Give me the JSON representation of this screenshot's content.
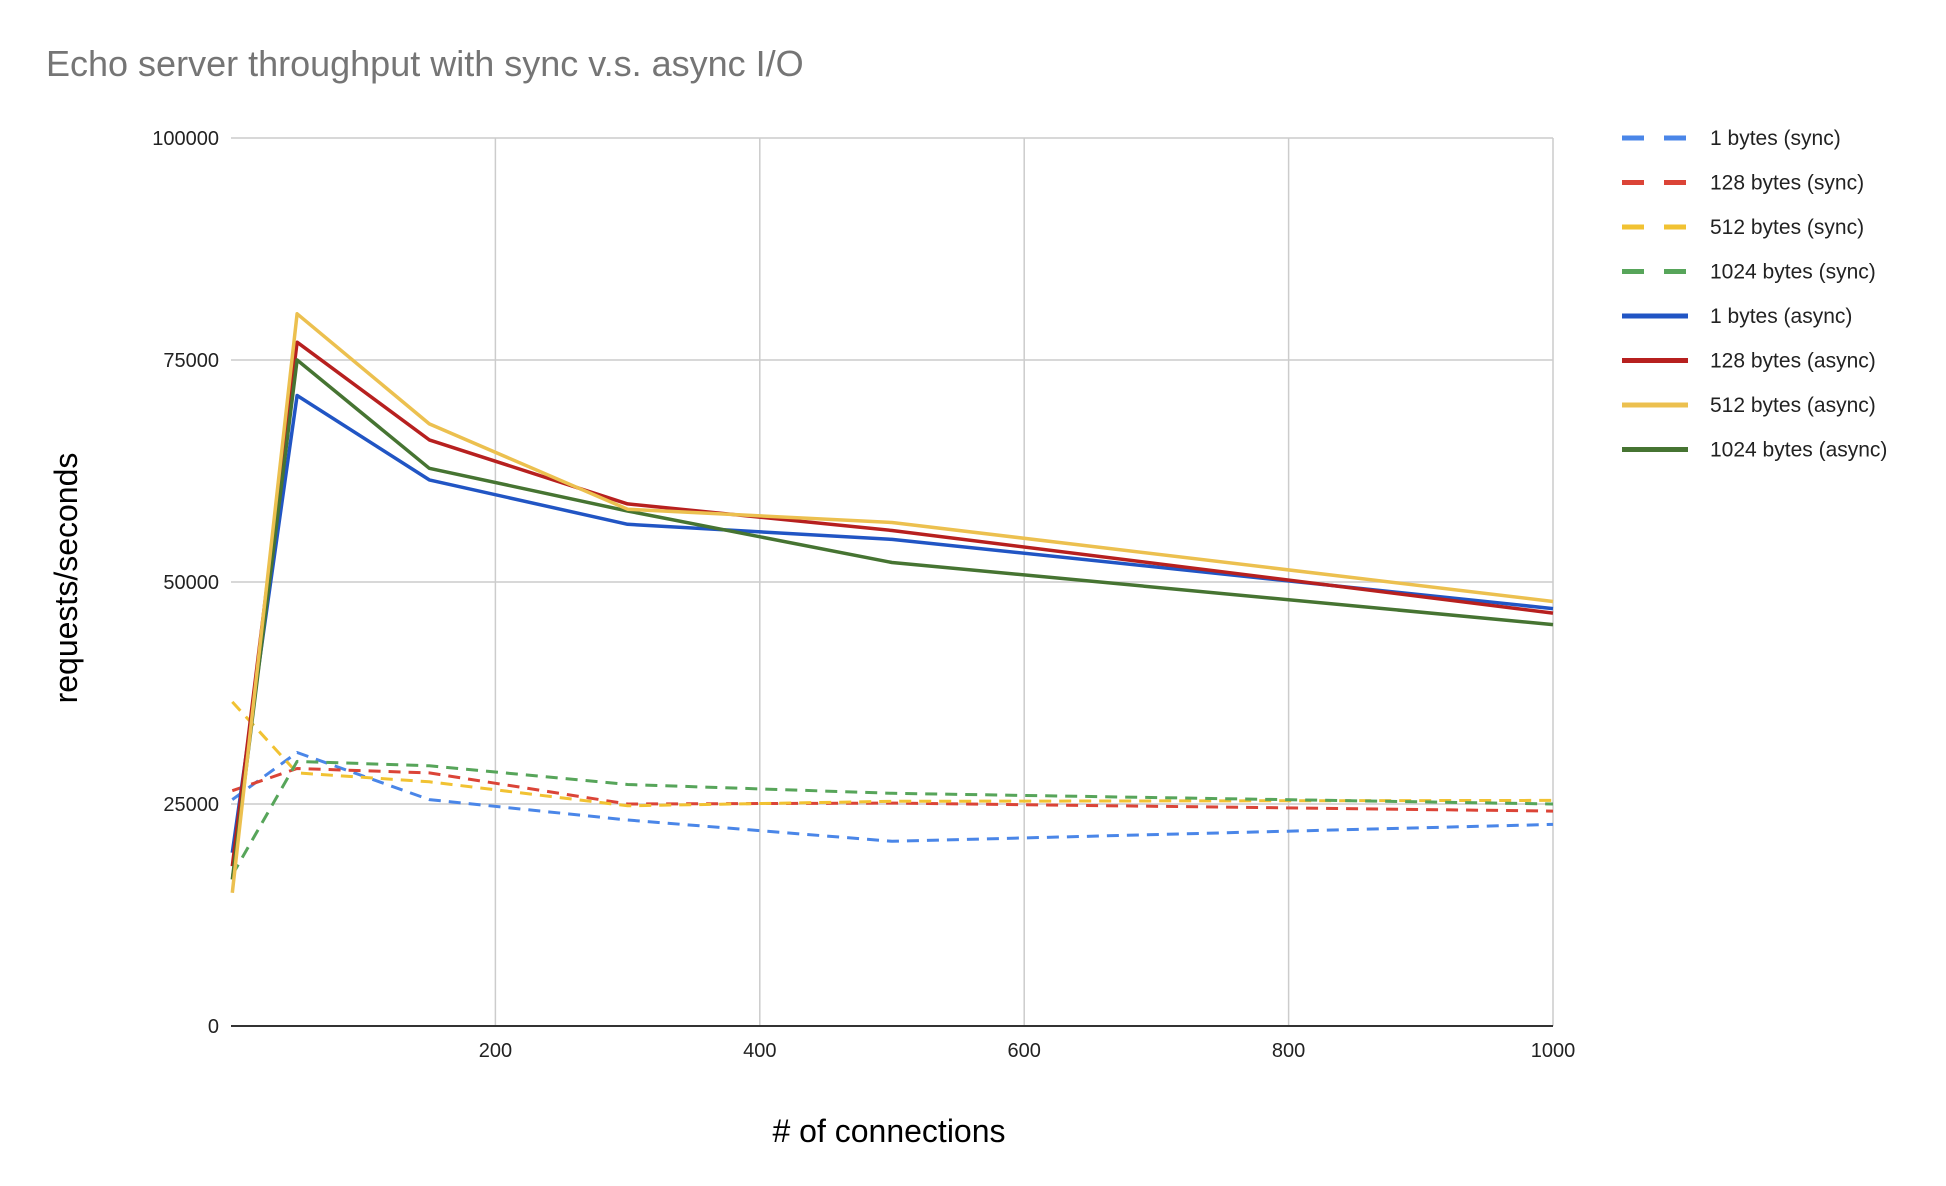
{
  "chart_data": {
    "type": "line",
    "title": "Echo server throughput with sync v.s. async I/O",
    "xlabel": "# of connections",
    "ylabel": "requests/seconds",
    "xlim": [
      0,
      1000
    ],
    "ylim": [
      0,
      100000
    ],
    "x_ticks": [
      "200",
      "400",
      "600",
      "800",
      "1000"
    ],
    "y_ticks": [
      "0",
      "25000",
      "50000",
      "75000",
      "100000"
    ],
    "x_tick_values": [
      200,
      400,
      600,
      800,
      1000
    ],
    "y_tick_values": [
      0,
      25000,
      50000,
      75000,
      100000
    ],
    "grid": true,
    "legend_position": "right",
    "x": [
      1,
      50,
      150,
      300,
      500,
      1000
    ],
    "series": [
      {
        "name": "1 bytes (sync)",
        "style": "dashed",
        "color": "#4a86e8",
        "values": [
          25500,
          30800,
          25500,
          23200,
          20800,
          22700
        ]
      },
      {
        "name": "128 bytes (sync)",
        "style": "dashed",
        "color": "#db4437",
        "values": [
          26500,
          29000,
          28500,
          25000,
          25100,
          24200
        ]
      },
      {
        "name": "512 bytes (sync)",
        "style": "dashed",
        "color": "#f1c232",
        "values": [
          36500,
          28500,
          27500,
          24800,
          25300,
          25400
        ]
      },
      {
        "name": "1024 bytes (sync)",
        "style": "dashed",
        "color": "#57a55a",
        "values": [
          17000,
          29800,
          29300,
          27200,
          26200,
          25000
        ]
      },
      {
        "name": "1 bytes (async)",
        "style": "solid",
        "color": "#2155c4",
        "values": [
          19500,
          71000,
          61500,
          56500,
          54800,
          47000
        ]
      },
      {
        "name": "128 bytes (async)",
        "style": "solid",
        "color": "#b7201f",
        "values": [
          18000,
          77000,
          66000,
          58800,
          55800,
          46500
        ]
      },
      {
        "name": "512 bytes (async)",
        "style": "solid",
        "color": "#ecc04f",
        "values": [
          15000,
          80200,
          67800,
          58200,
          56700,
          47800
        ]
      },
      {
        "name": "1024 bytes (async)",
        "style": "solid",
        "color": "#467432",
        "values": [
          16500,
          75000,
          62800,
          58000,
          52200,
          45200
        ]
      }
    ]
  }
}
